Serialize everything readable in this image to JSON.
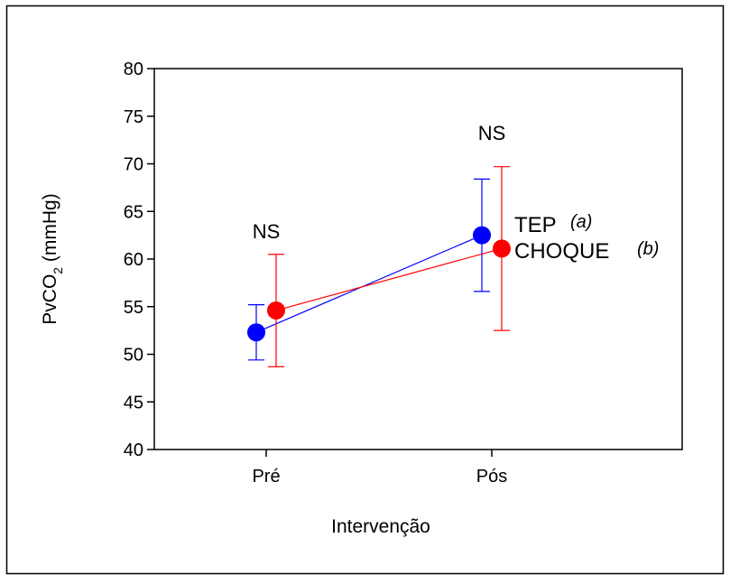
{
  "chart_data": {
    "type": "line",
    "xlabel": "Intervenção",
    "ylabel": {
      "main": "PvCO",
      "subscript": "2",
      "suffix": " (mmHg)"
    },
    "categories": [
      "Pré",
      "Pós"
    ],
    "ylim": [
      40,
      80
    ],
    "yticks": [
      40,
      45,
      50,
      55,
      60,
      65,
      70,
      75,
      80
    ],
    "grid": false,
    "legend_position": "right",
    "series": [
      {
        "name": "TEP",
        "tag": "a",
        "color": "#0000ff",
        "values": [
          52.3,
          62.5
        ],
        "err_low": [
          49.4,
          56.6
        ],
        "err_high": [
          55.2,
          68.4
        ]
      },
      {
        "name": "CHOQUE",
        "tag": "b",
        "color": "#ff0000",
        "values": [
          54.6,
          61.1
        ],
        "err_low": [
          48.7,
          52.5
        ],
        "err_high": [
          60.5,
          69.7
        ]
      }
    ],
    "annotations": [
      {
        "category": "Pré",
        "text": "NS",
        "y": 62.2
      },
      {
        "category": "Pós",
        "text": "NS",
        "y": 72.5
      }
    ]
  }
}
